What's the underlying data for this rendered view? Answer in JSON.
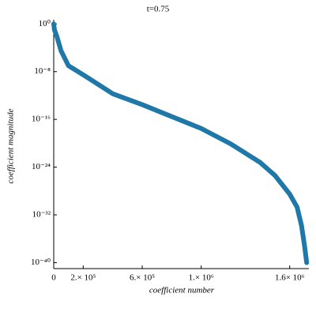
{
  "chart_data": {
    "type": "line",
    "title": "t=0.75",
    "x_label": "coefficient number",
    "y_label": "coefficient magnitude",
    "log_y": true,
    "color": "#1f78a8",
    "xlim": [
      0,
      1730000
    ],
    "ylim": [
      1e-41,
      5
    ],
    "xticks": [
      0,
      {
        "value": 200000,
        "label": "2.× 10⁵"
      },
      {
        "value": 600000,
        "label": "6.× 10⁵"
      },
      {
        "value": 1000000,
        "label": "1.× 10⁶"
      },
      {
        "value": 1600000,
        "label": "1.6× 10⁶"
      }
    ],
    "yticks": [
      {
        "value": 1,
        "label": "10⁰"
      },
      {
        "value": 1e-08,
        "label": "10⁻⁸"
      },
      {
        "value": 1e-16,
        "label": "10⁻¹⁶"
      },
      {
        "value": 1e-24,
        "label": "10⁻²⁴"
      },
      {
        "value": 1e-32,
        "label": "10⁻³²"
      },
      {
        "value": 1e-40,
        "label": "10⁻⁴⁰"
      }
    ],
    "x": [
      0,
      5000,
      20000,
      50000,
      100000,
      200000,
      400000,
      600000,
      800000,
      1000000,
      1200000,
      1400000,
      1500000,
      1600000,
      1650000,
      1680000,
      1700000,
      1715000
    ],
    "values": [
      1,
      0.1,
      0.01,
      3e-05,
      1e-07,
      3e-09,
      2e-12,
      3e-14,
      3e-16,
      3e-18,
      8e-21,
      6e-24,
      4e-26,
      3e-29,
      2e-31,
      1.6e-34,
      8e-38,
      1e-40
    ]
  }
}
